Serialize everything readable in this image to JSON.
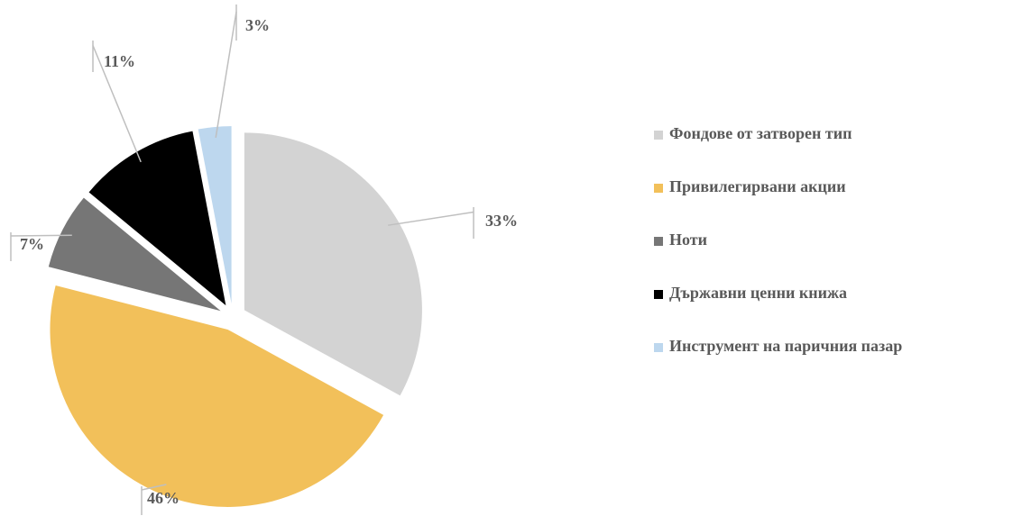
{
  "chart_data": {
    "type": "pie",
    "categories": [
      "Фондове от затворен тип",
      "Привилегирвани акции",
      "Ноти",
      "Държавни ценни книжа",
      "Инструмент на паричния пазар"
    ],
    "values": [
      33,
      46,
      7,
      11,
      3
    ],
    "value_labels": [
      "33%",
      "46%",
      "7%",
      "11%",
      "3%"
    ],
    "colors": [
      "#d3d3d3",
      "#f2c05a",
      "#767676",
      "#000000",
      "#bdd7ee"
    ],
    "exploded": true,
    "legend": "right"
  }
}
